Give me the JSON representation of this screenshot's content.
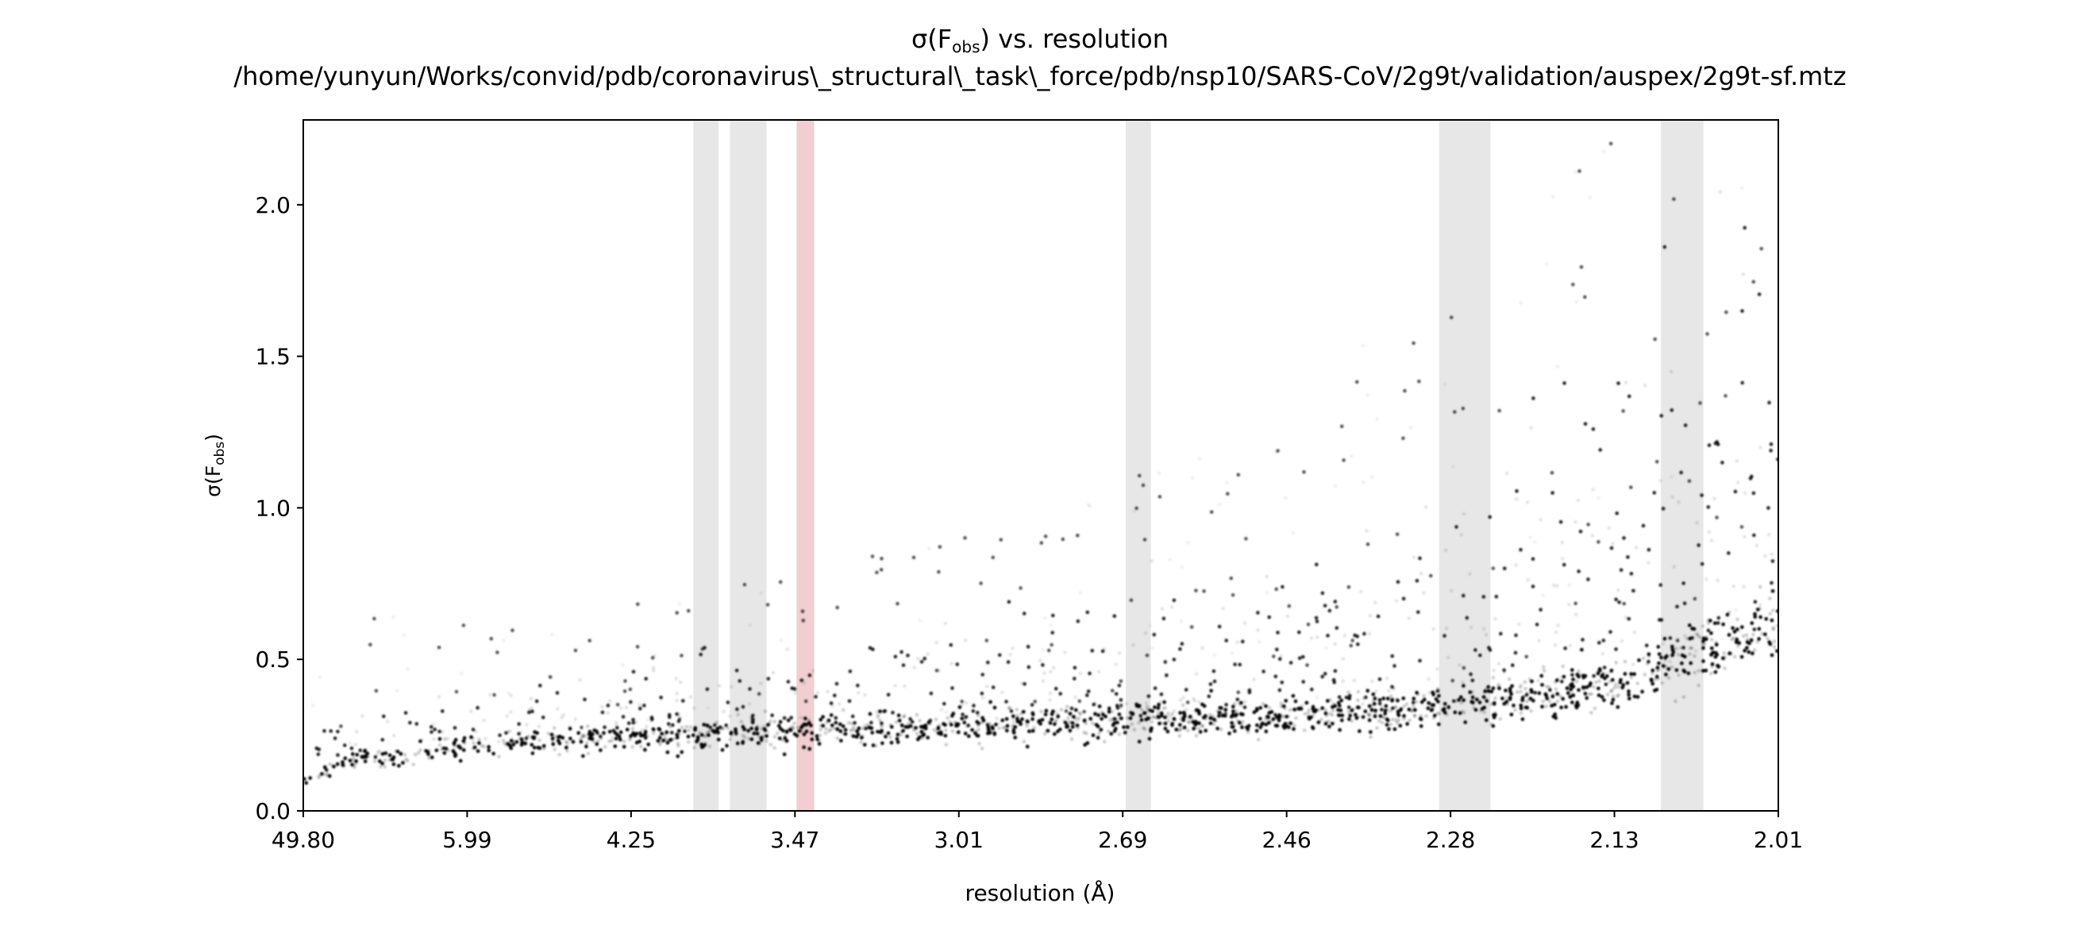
{
  "chart_data": {
    "type": "scatter",
    "title": "σ(F) vs. resolution",
    "title_symbol": "σ(F",
    "title_subscript": "obs",
    "title_rest": ") vs. resolution",
    "subtitle": "/home/yunyun/Works/convid/pdb/coronavirus\\_structural\\_task\\_force/pdb/nsp10/SARS-CoV/2g9t/validation/auspex/2g9t-sf.mtz",
    "xlabel": "resolution (Å)",
    "ylabel": "σ(F)",
    "ylabel_symbol": "σ(F",
    "ylabel_subscript": "obs",
    "ylabel_close": ")",
    "x_scale": "inverse-square resolution (1/d²)",
    "xlim": [
      49.8,
      2.01
    ],
    "ylim": [
      0.0,
      2.28
    ],
    "x_tick_labels": [
      "49.80",
      "5.99",
      "4.25",
      "3.47",
      "3.01",
      "2.69",
      "2.46",
      "2.28",
      "2.13",
      "2.01"
    ],
    "y_ticks": [
      0.0,
      0.5,
      1.0,
      1.5,
      2.0
    ],
    "y_tick_labels": [
      "0.0",
      "0.5",
      "1.0",
      "1.5",
      "2.0"
    ],
    "grid": false,
    "point_color": "#000000",
    "points_summary": {
      "resolution_A": [
        49.8,
        12.0,
        6.0,
        4.5,
        3.5,
        3.0,
        2.7,
        2.46,
        2.28,
        2.13,
        2.01
      ],
      "sigma_median": [
        0.1,
        0.16,
        0.21,
        0.24,
        0.26,
        0.28,
        0.3,
        0.31,
        0.34,
        0.42,
        0.62
      ],
      "sigma_upper_spread": [
        0.15,
        0.35,
        0.3,
        0.32,
        0.38,
        0.45,
        0.6,
        0.8,
        1.0,
        1.3,
        1.8
      ]
    },
    "ice_ring_bands": [
      {
        "res_low": 3.9,
        "res_high": 3.78,
        "color": "#d9d9d9"
      },
      {
        "res_low": 3.73,
        "res_high": 3.58,
        "color": "#d9d9d9"
      },
      {
        "res_low": 3.47,
        "res_high": 3.41,
        "color": "#e8b0b4"
      },
      {
        "res_low": 2.69,
        "res_high": 2.65,
        "color": "#d9d9d9"
      },
      {
        "res_low": 2.29,
        "res_high": 2.24,
        "color": "#d9d9d9"
      },
      {
        "res_low": 2.095,
        "res_high": 2.063,
        "color": "#d9d9d9"
      }
    ],
    "colors": {
      "ice_ring": "#d9d9d9",
      "flagged_ice_ring": "#e8b0b4",
      "axis": "#000000"
    }
  }
}
